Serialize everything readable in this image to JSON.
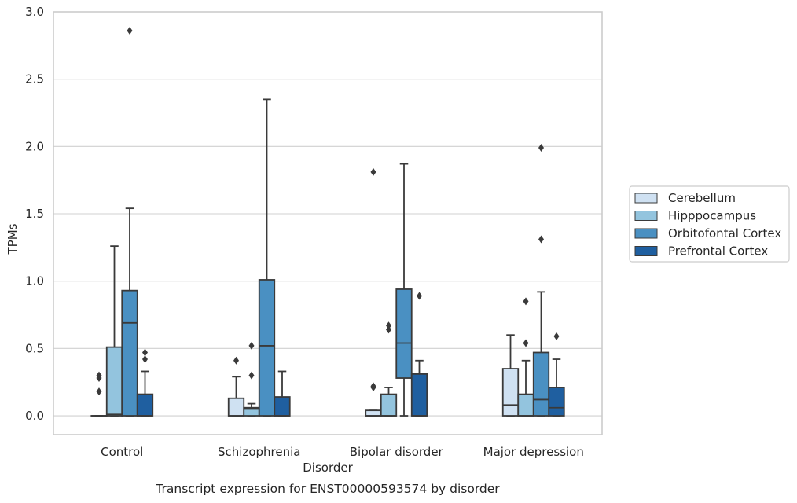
{
  "chart_data": {
    "type": "box",
    "title": "",
    "caption": "Transcript expression for ENST00000593574 by disorder",
    "xlabel": "Disorder",
    "ylabel": "TPMs",
    "ylim": [
      -0.14,
      3.0
    ],
    "yticks": [
      "0.0",
      "0.5",
      "1.0",
      "1.5",
      "2.0",
      "2.5",
      "3.0"
    ],
    "grid": "horizontal",
    "legend_position": "right",
    "categories": [
      "Control",
      "Schizophrenia",
      "Bipolar disorder",
      "Major depression"
    ],
    "series": [
      {
        "name": "Cerebellum",
        "color": "#cfe1f2",
        "boxes": [
          {
            "q1": 0.0,
            "median": 0.0,
            "q3": 0.0,
            "whisker_low": 0.0,
            "whisker_high": 0.0,
            "outliers": [
              0.18,
              0.28,
              0.3
            ]
          },
          {
            "q1": 0.0,
            "median": 0.0,
            "q3": 0.13,
            "whisker_low": 0.0,
            "whisker_high": 0.29,
            "outliers": [
              0.41
            ]
          },
          {
            "q1": 0.0,
            "median": 0.0,
            "q3": 0.04,
            "whisker_low": 0.0,
            "whisker_high": 0.04,
            "outliers": [
              0.21,
              0.22,
              1.81
            ]
          },
          {
            "q1": 0.0,
            "median": 0.08,
            "q3": 0.35,
            "whisker_low": 0.0,
            "whisker_high": 0.6,
            "outliers": []
          }
        ]
      },
      {
        "name": "Hipppocampus",
        "color": "#93c4de",
        "boxes": [
          {
            "q1": 0.0,
            "median": 0.01,
            "q3": 0.51,
            "whisker_low": 0.0,
            "whisker_high": 1.26,
            "outliers": []
          },
          {
            "q1": 0.0,
            "median": 0.05,
            "q3": 0.06,
            "whisker_low": 0.0,
            "whisker_high": 0.09,
            "outliers": [
              0.3,
              0.52
            ]
          },
          {
            "q1": 0.0,
            "median": 0.0,
            "q3": 0.16,
            "whisker_low": 0.0,
            "whisker_high": 0.21,
            "outliers": [
              0.64,
              0.67
            ]
          },
          {
            "q1": 0.0,
            "median": 0.0,
            "q3": 0.16,
            "whisker_low": 0.0,
            "whisker_high": 0.41,
            "outliers": [
              0.54,
              0.85
            ]
          }
        ]
      },
      {
        "name": "Orbitofontal Cortex",
        "color": "#4a90c2",
        "boxes": [
          {
            "q1": 0.0,
            "median": 0.69,
            "q3": 0.93,
            "whisker_low": 0.0,
            "whisker_high": 1.54,
            "outliers": [
              2.86
            ]
          },
          {
            "q1": 0.0,
            "median": 0.52,
            "q3": 1.01,
            "whisker_low": 0.0,
            "whisker_high": 2.35,
            "outliers": []
          },
          {
            "q1": 0.28,
            "median": 0.54,
            "q3": 0.94,
            "whisker_low": 0.0,
            "whisker_high": 1.87,
            "outliers": []
          },
          {
            "q1": 0.0,
            "median": 0.12,
            "q3": 0.47,
            "whisker_low": 0.0,
            "whisker_high": 0.92,
            "outliers": [
              1.31,
              1.99
            ]
          }
        ]
      },
      {
        "name": "Prefrontal Cortex",
        "color": "#1f5fa0",
        "boxes": [
          {
            "q1": 0.0,
            "median": 0.0,
            "q3": 0.16,
            "whisker_low": 0.0,
            "whisker_high": 0.33,
            "outliers": [
              0.42,
              0.47
            ]
          },
          {
            "q1": 0.0,
            "median": 0.0,
            "q3": 0.14,
            "whisker_low": 0.0,
            "whisker_high": 0.33,
            "outliers": []
          },
          {
            "q1": 0.0,
            "median": 0.0,
            "q3": 0.31,
            "whisker_low": 0.0,
            "whisker_high": 0.41,
            "outliers": [
              0.89
            ]
          },
          {
            "q1": 0.0,
            "median": 0.06,
            "q3": 0.21,
            "whisker_low": 0.0,
            "whisker_high": 0.42,
            "outliers": [
              0.59
            ]
          }
        ]
      }
    ]
  }
}
